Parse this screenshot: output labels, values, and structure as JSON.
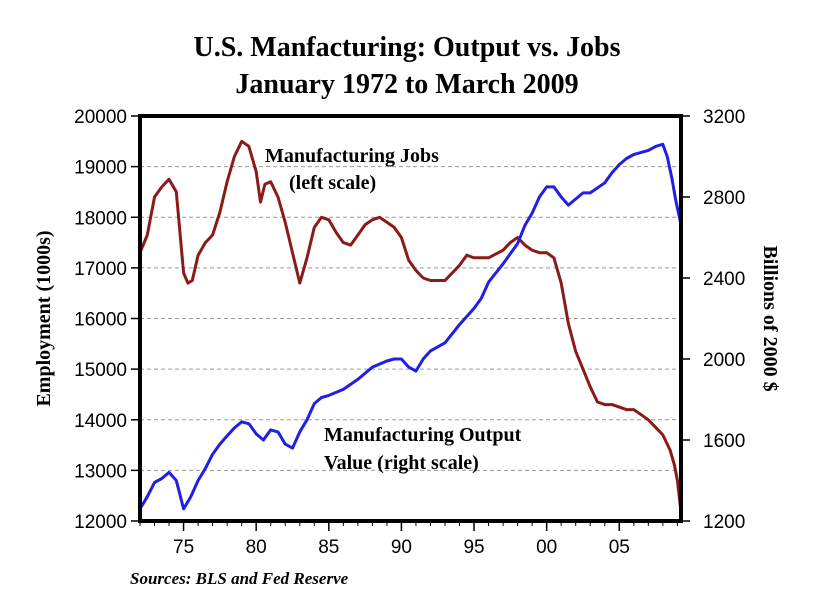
{
  "title_line1": "U.S. Manfacturing: Output vs. Jobs",
  "title_line2": "January 1972 to March 2009",
  "source": "Sources: BLS and Fed Reserve",
  "colors": {
    "jobs": "#8B1A1A",
    "output": "#1F1FE6",
    "frame": "#000000",
    "grid": "#9a9a9a"
  },
  "chart_data": {
    "type": "line",
    "title": "U.S. Manfacturing: Output vs. Jobs — January 1972 to March 2009",
    "xlabel": "",
    "ylabel": "Employment (1000s)",
    "ylabel_right": "Billions of 2000 $",
    "xlim": [
      1972,
      2009.25
    ],
    "ylim": [
      12000,
      20000
    ],
    "ylim_right": [
      1200,
      3200
    ],
    "x_ticks": [
      75,
      80,
      85,
      90,
      95,
      0,
      5
    ],
    "x_tick_labels": [
      "75",
      "80",
      "85",
      "90",
      "95",
      "00",
      "05"
    ],
    "y_ticks": [
      12000,
      13000,
      14000,
      15000,
      16000,
      17000,
      18000,
      19000,
      20000
    ],
    "y_ticks_right": [
      1200,
      1600,
      2000,
      2400,
      2800,
      3200
    ],
    "grid": true,
    "annotations": {
      "jobs_line1": "Manufacturing Jobs",
      "jobs_line2": "(left scale)",
      "output_line1": "Manufacturing Output",
      "output_line2": "Value (right scale)"
    },
    "series": [
      {
        "name": "Manufacturing Jobs",
        "axis": "left",
        "x": [
          1972.0,
          1972.5,
          1973.0,
          1973.5,
          1974.0,
          1974.5,
          1975.0,
          1975.3,
          1975.6,
          1976.0,
          1976.5,
          1977.0,
          1977.5,
          1978.0,
          1978.5,
          1979.0,
          1979.5,
          1980.0,
          1980.3,
          1980.6,
          1981.0,
          1981.5,
          1982.0,
          1982.5,
          1983.0,
          1983.5,
          1984.0,
          1984.5,
          1985.0,
          1985.5,
          1986.0,
          1986.5,
          1987.0,
          1987.5,
          1988.0,
          1988.5,
          1989.0,
          1989.5,
          1990.0,
          1990.5,
          1991.0,
          1991.5,
          1992.0,
          1993.0,
          1994.0,
          1994.5,
          1995.0,
          1996.0,
          1997.0,
          1997.5,
          1998.0,
          1998.5,
          1999.0,
          1999.5,
          2000.0,
          2000.5,
          2001.0,
          2001.5,
          2002.0,
          2002.5,
          2003.0,
          2003.5,
          2004.0,
          2004.5,
          2005.0,
          2005.5,
          2006.0,
          2006.5,
          2007.0,
          2007.5,
          2008.0,
          2008.5,
          2008.8,
          2009.0,
          2009.2
        ],
        "values": [
          17300,
          17650,
          18400,
          18600,
          18750,
          18500,
          16900,
          16700,
          16750,
          17250,
          17500,
          17650,
          18100,
          18700,
          19200,
          19500,
          19400,
          18900,
          18300,
          18650,
          18700,
          18400,
          17900,
          17300,
          16700,
          17200,
          17800,
          18000,
          17950,
          17700,
          17500,
          17450,
          17650,
          17850,
          17950,
          18000,
          17900,
          17800,
          17600,
          17150,
          16950,
          16800,
          16750,
          16750,
          17050,
          17250,
          17200,
          17200,
          17350,
          17500,
          17600,
          17450,
          17350,
          17300,
          17300,
          17200,
          16700,
          15900,
          15350,
          15000,
          14650,
          14350,
          14300,
          14300,
          14250,
          14200,
          14200,
          14100,
          14000,
          13850,
          13700,
          13400,
          13100,
          12800,
          12300
        ]
      },
      {
        "name": "Manufacturing Output Value",
        "axis": "right",
        "x": [
          1972.0,
          1972.5,
          1973.0,
          1973.5,
          1974.0,
          1974.5,
          1975.0,
          1975.5,
          1976.0,
          1976.5,
          1977.0,
          1977.5,
          1978.0,
          1978.5,
          1979.0,
          1979.5,
          1980.0,
          1980.5,
          1981.0,
          1981.5,
          1982.0,
          1982.5,
          1983.0,
          1983.5,
          1984.0,
          1984.5,
          1985.0,
          1986.0,
          1987.0,
          1988.0,
          1989.0,
          1989.5,
          1990.0,
          1990.5,
          1991.0,
          1991.5,
          1992.0,
          1993.0,
          1994.0,
          1995.0,
          1995.5,
          1996.0,
          1997.0,
          1998.0,
          1998.5,
          1999.0,
          1999.5,
          2000.0,
          2000.5,
          2001.0,
          2001.5,
          2002.0,
          2002.5,
          2003.0,
          2004.0,
          2004.5,
          2005.0,
          2005.5,
          2006.0,
          2006.5,
          2007.0,
          2007.5,
          2008.0,
          2008.3,
          2008.6,
          2008.9,
          2009.2
        ],
        "values": [
          1260,
          1320,
          1390,
          1410,
          1440,
          1400,
          1260,
          1320,
          1400,
          1460,
          1530,
          1580,
          1620,
          1660,
          1690,
          1680,
          1630,
          1600,
          1650,
          1640,
          1580,
          1560,
          1640,
          1700,
          1780,
          1810,
          1820,
          1850,
          1900,
          1960,
          1990,
          2000,
          2000,
          1960,
          1940,
          2000,
          2040,
          2080,
          2170,
          2250,
          2300,
          2380,
          2470,
          2570,
          2660,
          2720,
          2800,
          2850,
          2850,
          2800,
          2760,
          2790,
          2820,
          2820,
          2870,
          2920,
          2960,
          2990,
          3010,
          3020,
          3030,
          3050,
          3060,
          3000,
          2900,
          2780,
          2680
        ]
      }
    ]
  }
}
